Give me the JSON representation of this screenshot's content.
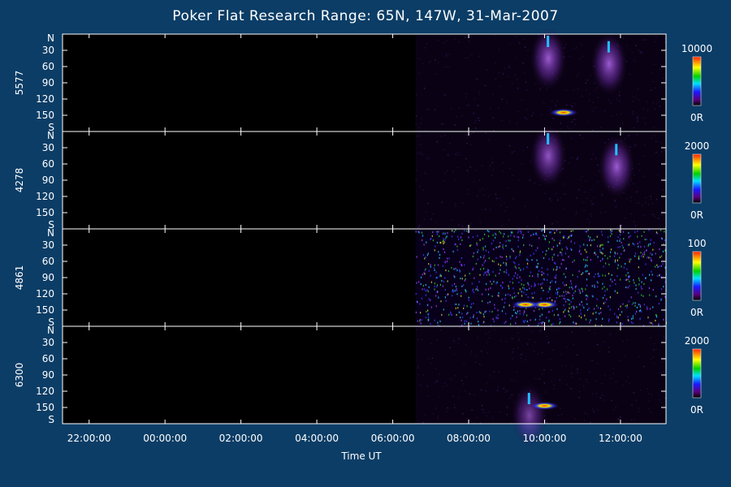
{
  "chart_data": {
    "type": "heatmap",
    "title": "Poker Flat Research Range: 65N, 147W, 31-Mar-2007",
    "xlabel": "Time UT",
    "x_ticks": [
      "22:00:00",
      "00:00:00",
      "02:00:00",
      "04:00:00",
      "06:00:00",
      "08:00:00",
      "10:00:00",
      "12:00:00"
    ],
    "x_tick_hours": [
      -2,
      0,
      2,
      4,
      6,
      8,
      10,
      12
    ],
    "xlim_hours": [
      -2.7,
      13.2
    ],
    "data_start_hour": 6.6,
    "ylim": [
      0,
      180
    ],
    "y_ticks": [
      {
        "label": "N",
        "value": 0
      },
      {
        "label": "30",
        "value": 30
      },
      {
        "label": "60",
        "value": 60
      },
      {
        "label": "90",
        "value": 90
      },
      {
        "label": "120",
        "value": 120
      },
      {
        "label": "150",
        "value": 150
      },
      {
        "label": "S",
        "value": 180
      }
    ],
    "colorbar_min_label": "0R",
    "panels": [
      {
        "wavelength": "5577",
        "colorbar_max": "10000",
        "features": [
          {
            "t": 10.1,
            "y": 15,
            "intensity": 0.55
          },
          {
            "t": 11.7,
            "y": 25,
            "intensity": 0.55
          },
          {
            "t": 10.5,
            "y": 145,
            "intensity": 1.0
          }
        ]
      },
      {
        "wavelength": "4278",
        "colorbar_max": "2000",
        "features": [
          {
            "t": 10.1,
            "y": 15,
            "intensity": 0.5
          },
          {
            "t": 11.9,
            "y": 35,
            "intensity": 0.55
          }
        ]
      },
      {
        "wavelength": "4861",
        "colorbar_max": "100",
        "features": [
          {
            "t": 10.0,
            "y": 140,
            "intensity": 1.0
          },
          {
            "t": 9.5,
            "y": 140,
            "intensity": 0.9
          }
        ]
      },
      {
        "wavelength": "6300",
        "colorbar_max": "2000",
        "features": [
          {
            "t": 9.6,
            "y": 135,
            "intensity": 0.35
          },
          {
            "t": 10.0,
            "y": 147,
            "intensity": 1.0
          }
        ]
      }
    ]
  }
}
